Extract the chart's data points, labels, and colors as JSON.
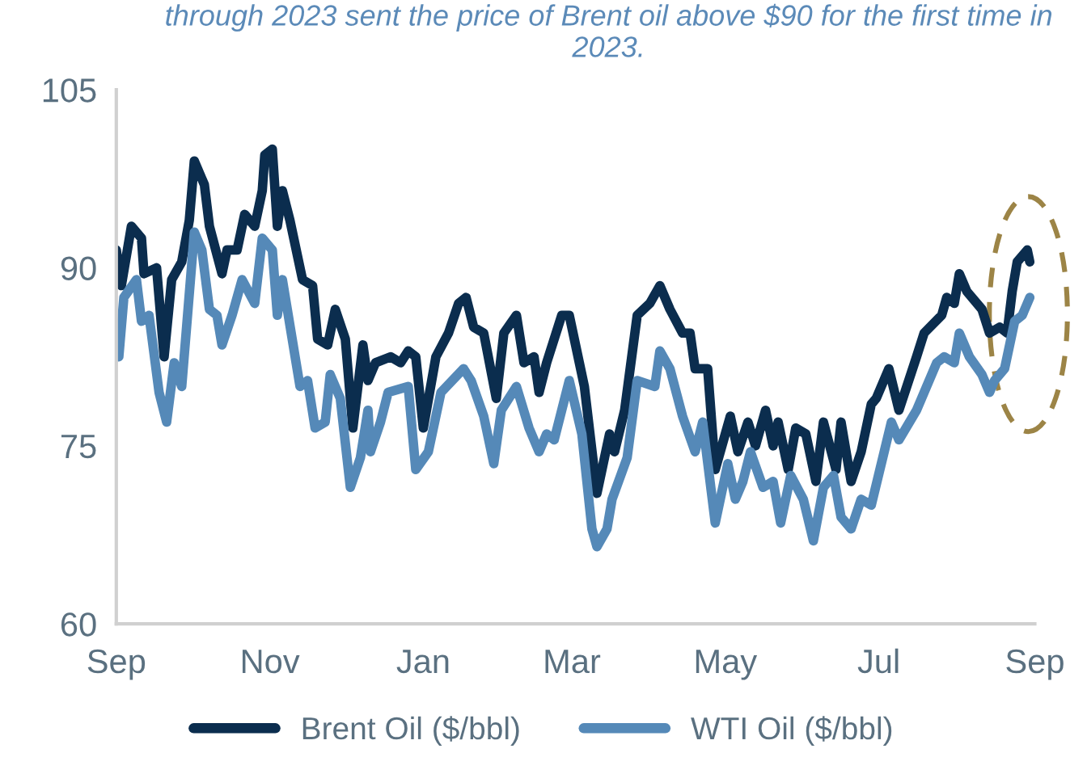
{
  "chart_data": {
    "type": "line",
    "annotations": [
      "through 2023 sent the price of Brent oil above $90 for the first time in 2023."
    ],
    "series": [
      {
        "name": "Brent Oil ($/bbl)",
        "color": "#0b2d4e",
        "x": [
          "2022-09-01",
          "2022-09-03",
          "2022-09-07",
          "2022-09-11",
          "2022-09-12",
          "2022-09-17",
          "2022-09-20",
          "2022-09-23",
          "2022-09-27",
          "2022-09-30",
          "2022-10-02",
          "2022-10-06",
          "2022-10-08",
          "2022-10-13",
          "2022-10-15",
          "2022-10-19",
          "2022-10-22",
          "2022-10-26",
          "2022-10-29",
          "2022-10-30",
          "2022-11-02",
          "2022-11-04",
          "2022-11-06",
          "2022-11-09",
          "2022-11-14",
          "2022-11-18",
          "2022-11-20",
          "2022-11-24",
          "2022-11-27",
          "2022-12-01",
          "2022-12-04",
          "2022-12-08",
          "2022-12-10",
          "2022-12-13",
          "2022-12-19",
          "2022-12-23",
          "2022-12-26",
          "2022-12-29",
          "2023-01-01",
          "2023-01-06",
          "2023-01-11",
          "2023-01-15",
          "2023-01-18",
          "2023-01-21",
          "2023-01-25",
          "2023-01-30",
          "2023-02-02",
          "2023-02-07",
          "2023-02-10",
          "2023-02-14",
          "2023-02-16",
          "2023-02-19",
          "2023-02-25",
          "2023-02-28",
          "2023-03-04",
          "2023-03-06",
          "2023-03-11",
          "2023-03-16",
          "2023-03-18",
          "2023-03-22",
          "2023-03-27",
          "2023-04-01",
          "2023-04-05",
          "2023-04-09",
          "2023-04-14",
          "2023-04-17",
          "2023-04-19",
          "2023-04-24",
          "2023-04-27",
          "2023-05-03",
          "2023-05-06",
          "2023-05-10",
          "2023-05-13",
          "2023-05-17",
          "2023-05-20",
          "2023-05-22",
          "2023-05-26",
          "2023-05-29",
          "2023-06-02",
          "2023-06-06",
          "2023-06-09",
          "2023-06-14",
          "2023-06-16",
          "2023-06-20",
          "2023-06-24",
          "2023-06-28",
          "2023-06-30",
          "2023-07-05",
          "2023-07-09",
          "2023-07-16",
          "2023-07-19",
          "2023-07-26",
          "2023-07-28",
          "2023-07-31",
          "2023-08-02",
          "2023-08-05",
          "2023-08-11",
          "2023-08-14",
          "2023-08-18",
          "2023-08-21",
          "2023-08-23",
          "2023-08-25",
          "2023-08-29",
          "2023-08-30"
        ],
        "values": [
          91.5,
          88.5,
          93.5,
          92.5,
          89.5,
          90,
          82.5,
          89,
          90.5,
          94,
          99,
          97,
          93.5,
          89.5,
          91.5,
          91.5,
          94.5,
          93.5,
          96.5,
          99.5,
          100,
          93.5,
          96.5,
          94,
          89,
          88.5,
          84,
          83.5,
          86.5,
          84,
          76.5,
          83.5,
          80.5,
          82,
          82.5,
          82,
          83,
          82.5,
          76.5,
          82.5,
          84.5,
          87,
          87.5,
          85,
          84.5,
          79,
          84.5,
          86,
          82,
          82.5,
          79.5,
          82,
          86,
          86,
          82,
          80,
          71,
          76,
          74.5,
          78,
          86,
          87,
          88.5,
          86.5,
          84.5,
          84.5,
          81.5,
          81.5,
          73,
          77.5,
          74.5,
          77,
          75,
          78,
          75,
          77,
          73,
          76.5,
          76,
          72,
          77,
          73,
          77,
          72,
          74.5,
          78.5,
          79,
          81.5,
          78,
          82.5,
          84.5,
          86,
          87.5,
          87,
          89.5,
          88,
          86.5,
          84.5,
          85,
          84.5,
          88,
          90.5,
          91.5,
          90.5
        ]
      },
      {
        "name": "WTI Oil ($/bbl)",
        "color": "#5589b8",
        "x": [
          "2022-09-02",
          "2022-09-04",
          "2022-09-09",
          "2022-09-11",
          "2022-09-14",
          "2022-09-18",
          "2022-09-21",
          "2022-09-24",
          "2022-09-27",
          "2022-10-02",
          "2022-10-05",
          "2022-10-08",
          "2022-10-11",
          "2022-10-13",
          "2022-10-17",
          "2022-10-21",
          "2022-10-26",
          "2022-10-29",
          "2022-11-02",
          "2022-11-04",
          "2022-11-06",
          "2022-11-13",
          "2022-11-16",
          "2022-11-19",
          "2022-11-23",
          "2022-11-25",
          "2022-11-29",
          "2022-12-03",
          "2022-12-07",
          "2022-12-10",
          "2022-12-11",
          "2022-12-15",
          "2022-12-18",
          "2022-12-26",
          "2022-12-29",
          "2023-01-03",
          "2023-01-08",
          "2023-01-17",
          "2023-01-20",
          "2023-01-25",
          "2023-01-29",
          "2023-02-01",
          "2023-02-07",
          "2023-02-12",
          "2023-02-16",
          "2023-02-19",
          "2023-02-22",
          "2023-02-28",
          "2023-03-05",
          "2023-03-09",
          "2023-03-11",
          "2023-03-15",
          "2023-03-17",
          "2023-03-23",
          "2023-03-27",
          "2023-04-03",
          "2023-04-05",
          "2023-04-09",
          "2023-04-14",
          "2023-04-19",
          "2023-04-22",
          "2023-04-27",
          "2023-05-02",
          "2023-05-05",
          "2023-05-08",
          "2023-05-11",
          "2023-05-16",
          "2023-05-20",
          "2023-05-23",
          "2023-05-27",
          "2023-06-01",
          "2023-06-05",
          "2023-06-09",
          "2023-06-13",
          "2023-06-16",
          "2023-06-20",
          "2023-06-24",
          "2023-06-28",
          "2023-07-06",
          "2023-07-09",
          "2023-07-16",
          "2023-07-24",
          "2023-07-27",
          "2023-07-31",
          "2023-08-02",
          "2023-08-06",
          "2023-08-11",
          "2023-08-14",
          "2023-08-16",
          "2023-08-20",
          "2023-08-24",
          "2023-08-27",
          "2023-08-30"
        ],
        "values": [
          82.5,
          87.5,
          89,
          85.5,
          86,
          79.5,
          77,
          82,
          80,
          93,
          91.5,
          86.5,
          86,
          83.5,
          86,
          89,
          87,
          92.5,
          91.5,
          86,
          89,
          80,
          80.5,
          76.5,
          77,
          81,
          79,
          71.5,
          74,
          78,
          74.5,
          77,
          79.5,
          80,
          73,
          74.5,
          79.5,
          81.5,
          80.5,
          77.5,
          73.5,
          78,
          80,
          76.5,
          74.5,
          76,
          75.5,
          80.5,
          76,
          68,
          66.5,
          68,
          70.5,
          74,
          80.5,
          80,
          83,
          81.5,
          77.5,
          74.5,
          77,
          68.5,
          73.5,
          70.5,
          72,
          74.5,
          71.5,
          72,
          68.5,
          72.5,
          70.5,
          67,
          71.5,
          72.5,
          69,
          68,
          70.5,
          70,
          77,
          75.5,
          78,
          82,
          82.5,
          82,
          84.5,
          82.5,
          81,
          79.5,
          80.5,
          81.5,
          85.5,
          86,
          87.5
        ]
      }
    ],
    "xlim": [
      "2022-09-01",
      "2023-09-01"
    ],
    "xticks": [
      {
        "value": "2022-09-01",
        "label": "Sep"
      },
      {
        "value": "2022-11-01",
        "label": "Nov"
      },
      {
        "value": "2023-01-01",
        "label": "Jan"
      },
      {
        "value": "2023-03-01",
        "label": "Mar"
      },
      {
        "value": "2023-05-01",
        "label": "May"
      },
      {
        "value": "2023-07-01",
        "label": "Jul"
      },
      {
        "value": "2023-09-01",
        "label": "Sep"
      }
    ],
    "ylim": [
      60,
      105
    ],
    "yticks": [
      60,
      75,
      90,
      105
    ],
    "grid": false,
    "legend": "bottom",
    "marker": "none",
    "line_style": "solid"
  }
}
